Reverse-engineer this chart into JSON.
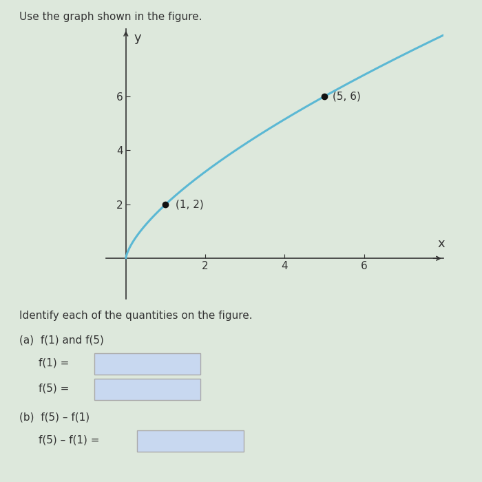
{
  "title": "Use the graph shown in the figure.",
  "xlabel": "x",
  "ylabel": "y",
  "curve_color": "#5bb8d4",
  "point1": [
    1,
    2
  ],
  "point2": [
    5,
    6
  ],
  "point1_label": "(1, 2)",
  "point2_label": "(5, 6)",
  "xlim": [
    -0.5,
    8.0
  ],
  "ylim": [
    -1.5,
    8.5
  ],
  "xticks": [
    2,
    4,
    6
  ],
  "yticks": [
    2,
    4,
    6
  ],
  "bg_color": "#dde8dc",
  "text_color": "#333333",
  "identify_text": "Identify each of the quantities on the figure.",
  "part_a_text": "(a)  f(1) and f(5)",
  "f1_label": "f(1) =",
  "f5_label": "f(5) =",
  "part_b_text": "(b)  f(5) – f(1)",
  "diff_label": "f(5) – f(1) =",
  "box_color": "#c8d8f0",
  "box_edge_color": "#aaaaaa"
}
